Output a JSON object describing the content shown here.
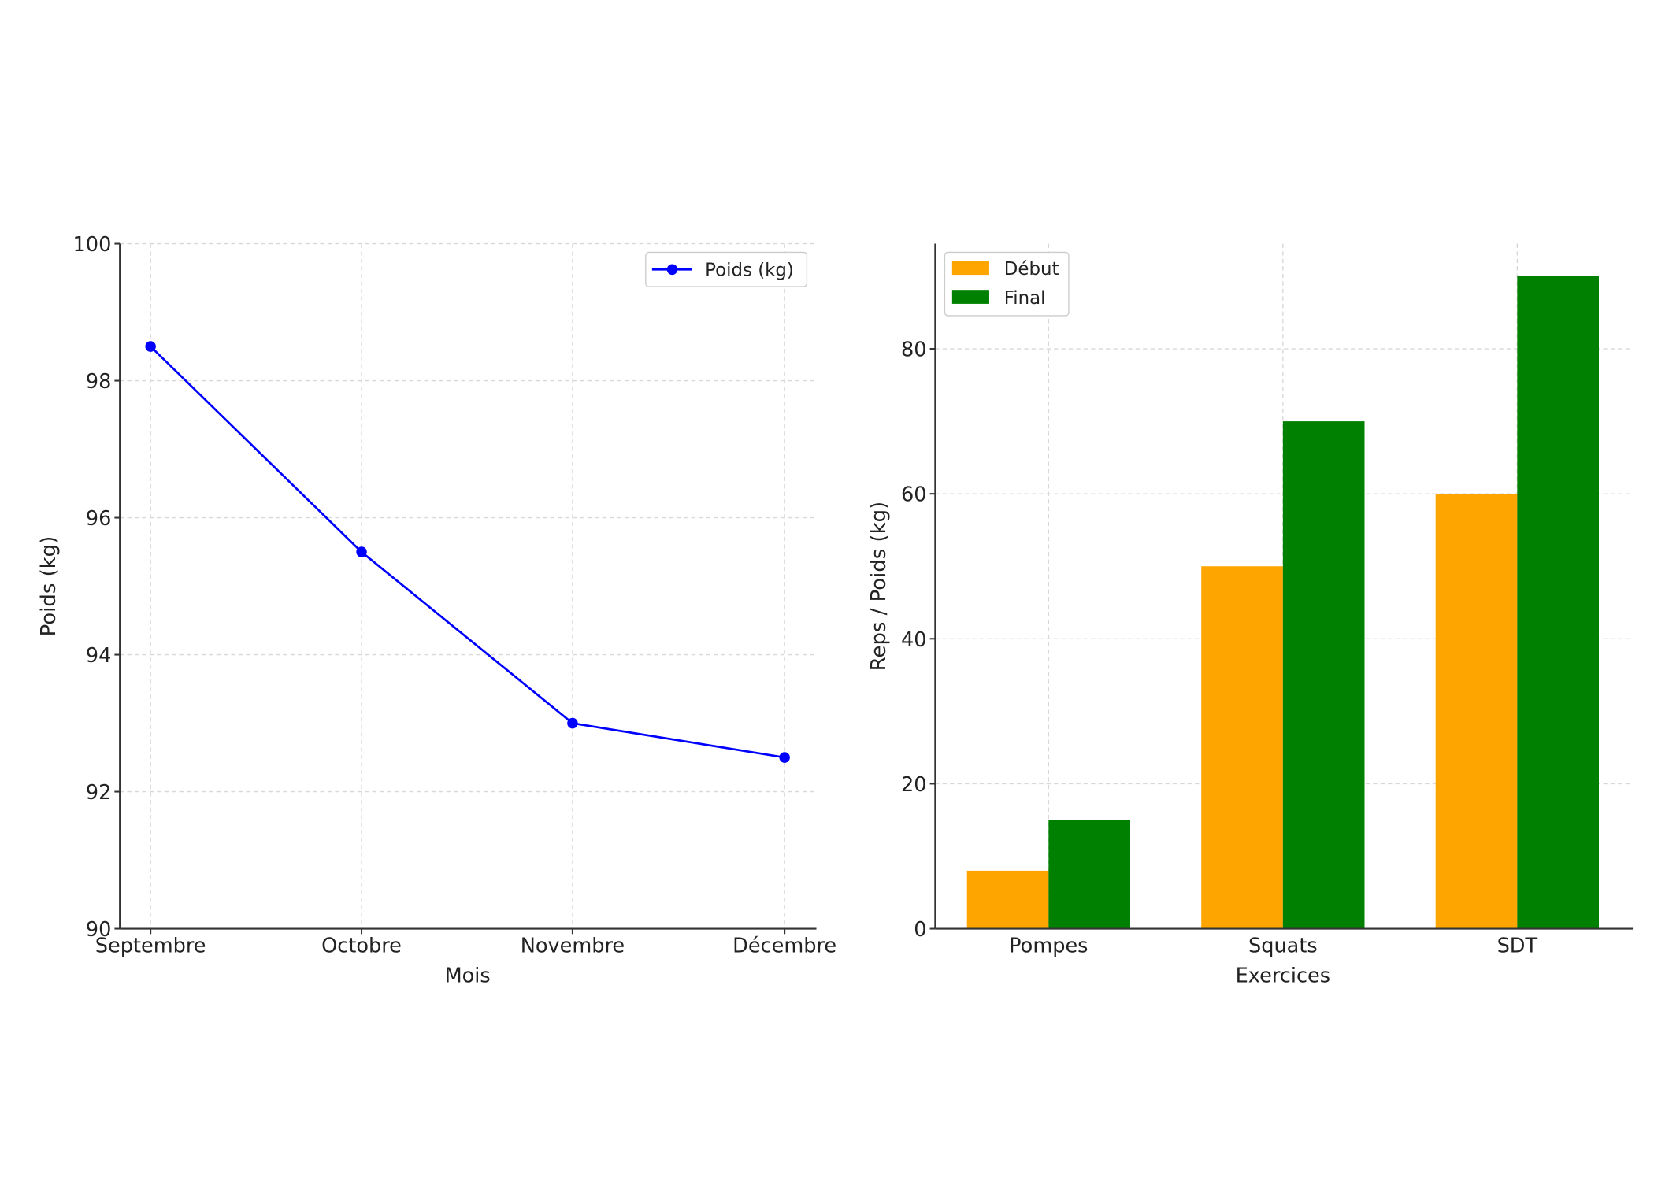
{
  "chart_data": [
    {
      "type": "line",
      "categories": [
        "Septembre",
        "Octobre",
        "Novembre",
        "Décembre"
      ],
      "series": [
        {
          "name": "Poids (kg)",
          "values": [
            98.5,
            95.5,
            93,
            92.5
          ],
          "color": "#0000ff"
        }
      ],
      "xlabel": "Mois",
      "ylabel": "Poids (kg)",
      "ylim": [
        90,
        100
      ],
      "yticks": [
        90,
        92,
        94,
        96,
        98,
        100
      ],
      "grid": true,
      "legend": "top-right"
    },
    {
      "type": "bar",
      "categories": [
        "Pompes",
        "Squats",
        "SDT"
      ],
      "series": [
        {
          "name": "Début",
          "values": [
            8,
            50,
            60
          ],
          "color": "#ffa500"
        },
        {
          "name": "Final",
          "values": [
            15,
            70,
            90
          ],
          "color": "#008000"
        }
      ],
      "xlabel": "Exercices",
      "ylabel": "Reps / Poids (kg)",
      "ylim": [
        0,
        94.5
      ],
      "yticks": [
        0,
        20,
        40,
        60,
        80
      ],
      "grid": true,
      "legend": "top-left"
    }
  ]
}
